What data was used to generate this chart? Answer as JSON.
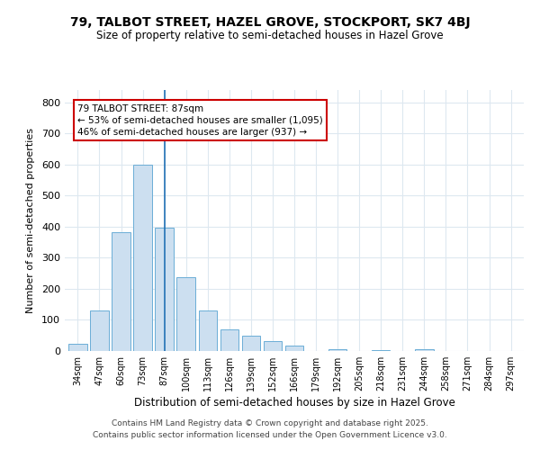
{
  "title1": "79, TALBOT STREET, HAZEL GROVE, STOCKPORT, SK7 4BJ",
  "title2": "Size of property relative to semi-detached houses in Hazel Grove",
  "xlabel": "Distribution of semi-detached houses by size in Hazel Grove",
  "ylabel": "Number of semi-detached properties",
  "bar_color": "#ccdff0",
  "bar_edge_color": "#6baed6",
  "vline_color": "#2171b5",
  "annotation_title": "79 TALBOT STREET: 87sqm",
  "annotation_line1": "← 53% of semi-detached houses are smaller (1,095)",
  "annotation_line2": "46% of semi-detached houses are larger (937) →",
  "annotation_box_color": "#ffffff",
  "annotation_box_edge": "#cc0000",
  "categories": [
    "34sqm",
    "47sqm",
    "60sqm",
    "73sqm",
    "87sqm",
    "100sqm",
    "113sqm",
    "126sqm",
    "139sqm",
    "152sqm",
    "166sqm",
    "179sqm",
    "192sqm",
    "205sqm",
    "218sqm",
    "231sqm",
    "244sqm",
    "258sqm",
    "271sqm",
    "284sqm",
    "297sqm"
  ],
  "values": [
    22,
    130,
    383,
    600,
    397,
    238,
    130,
    70,
    48,
    32,
    18,
    0,
    7,
    0,
    4,
    0,
    7,
    0,
    0,
    0,
    0
  ],
  "ylim": [
    0,
    840
  ],
  "yticks": [
    0,
    100,
    200,
    300,
    400,
    500,
    600,
    700,
    800
  ],
  "footer1": "Contains HM Land Registry data © Crown copyright and database right 2025.",
  "footer2": "Contains public sector information licensed under the Open Government Licence v3.0.",
  "bg_color": "#ffffff",
  "plot_bg_color": "#ffffff",
  "grid_color": "#dde8f0"
}
